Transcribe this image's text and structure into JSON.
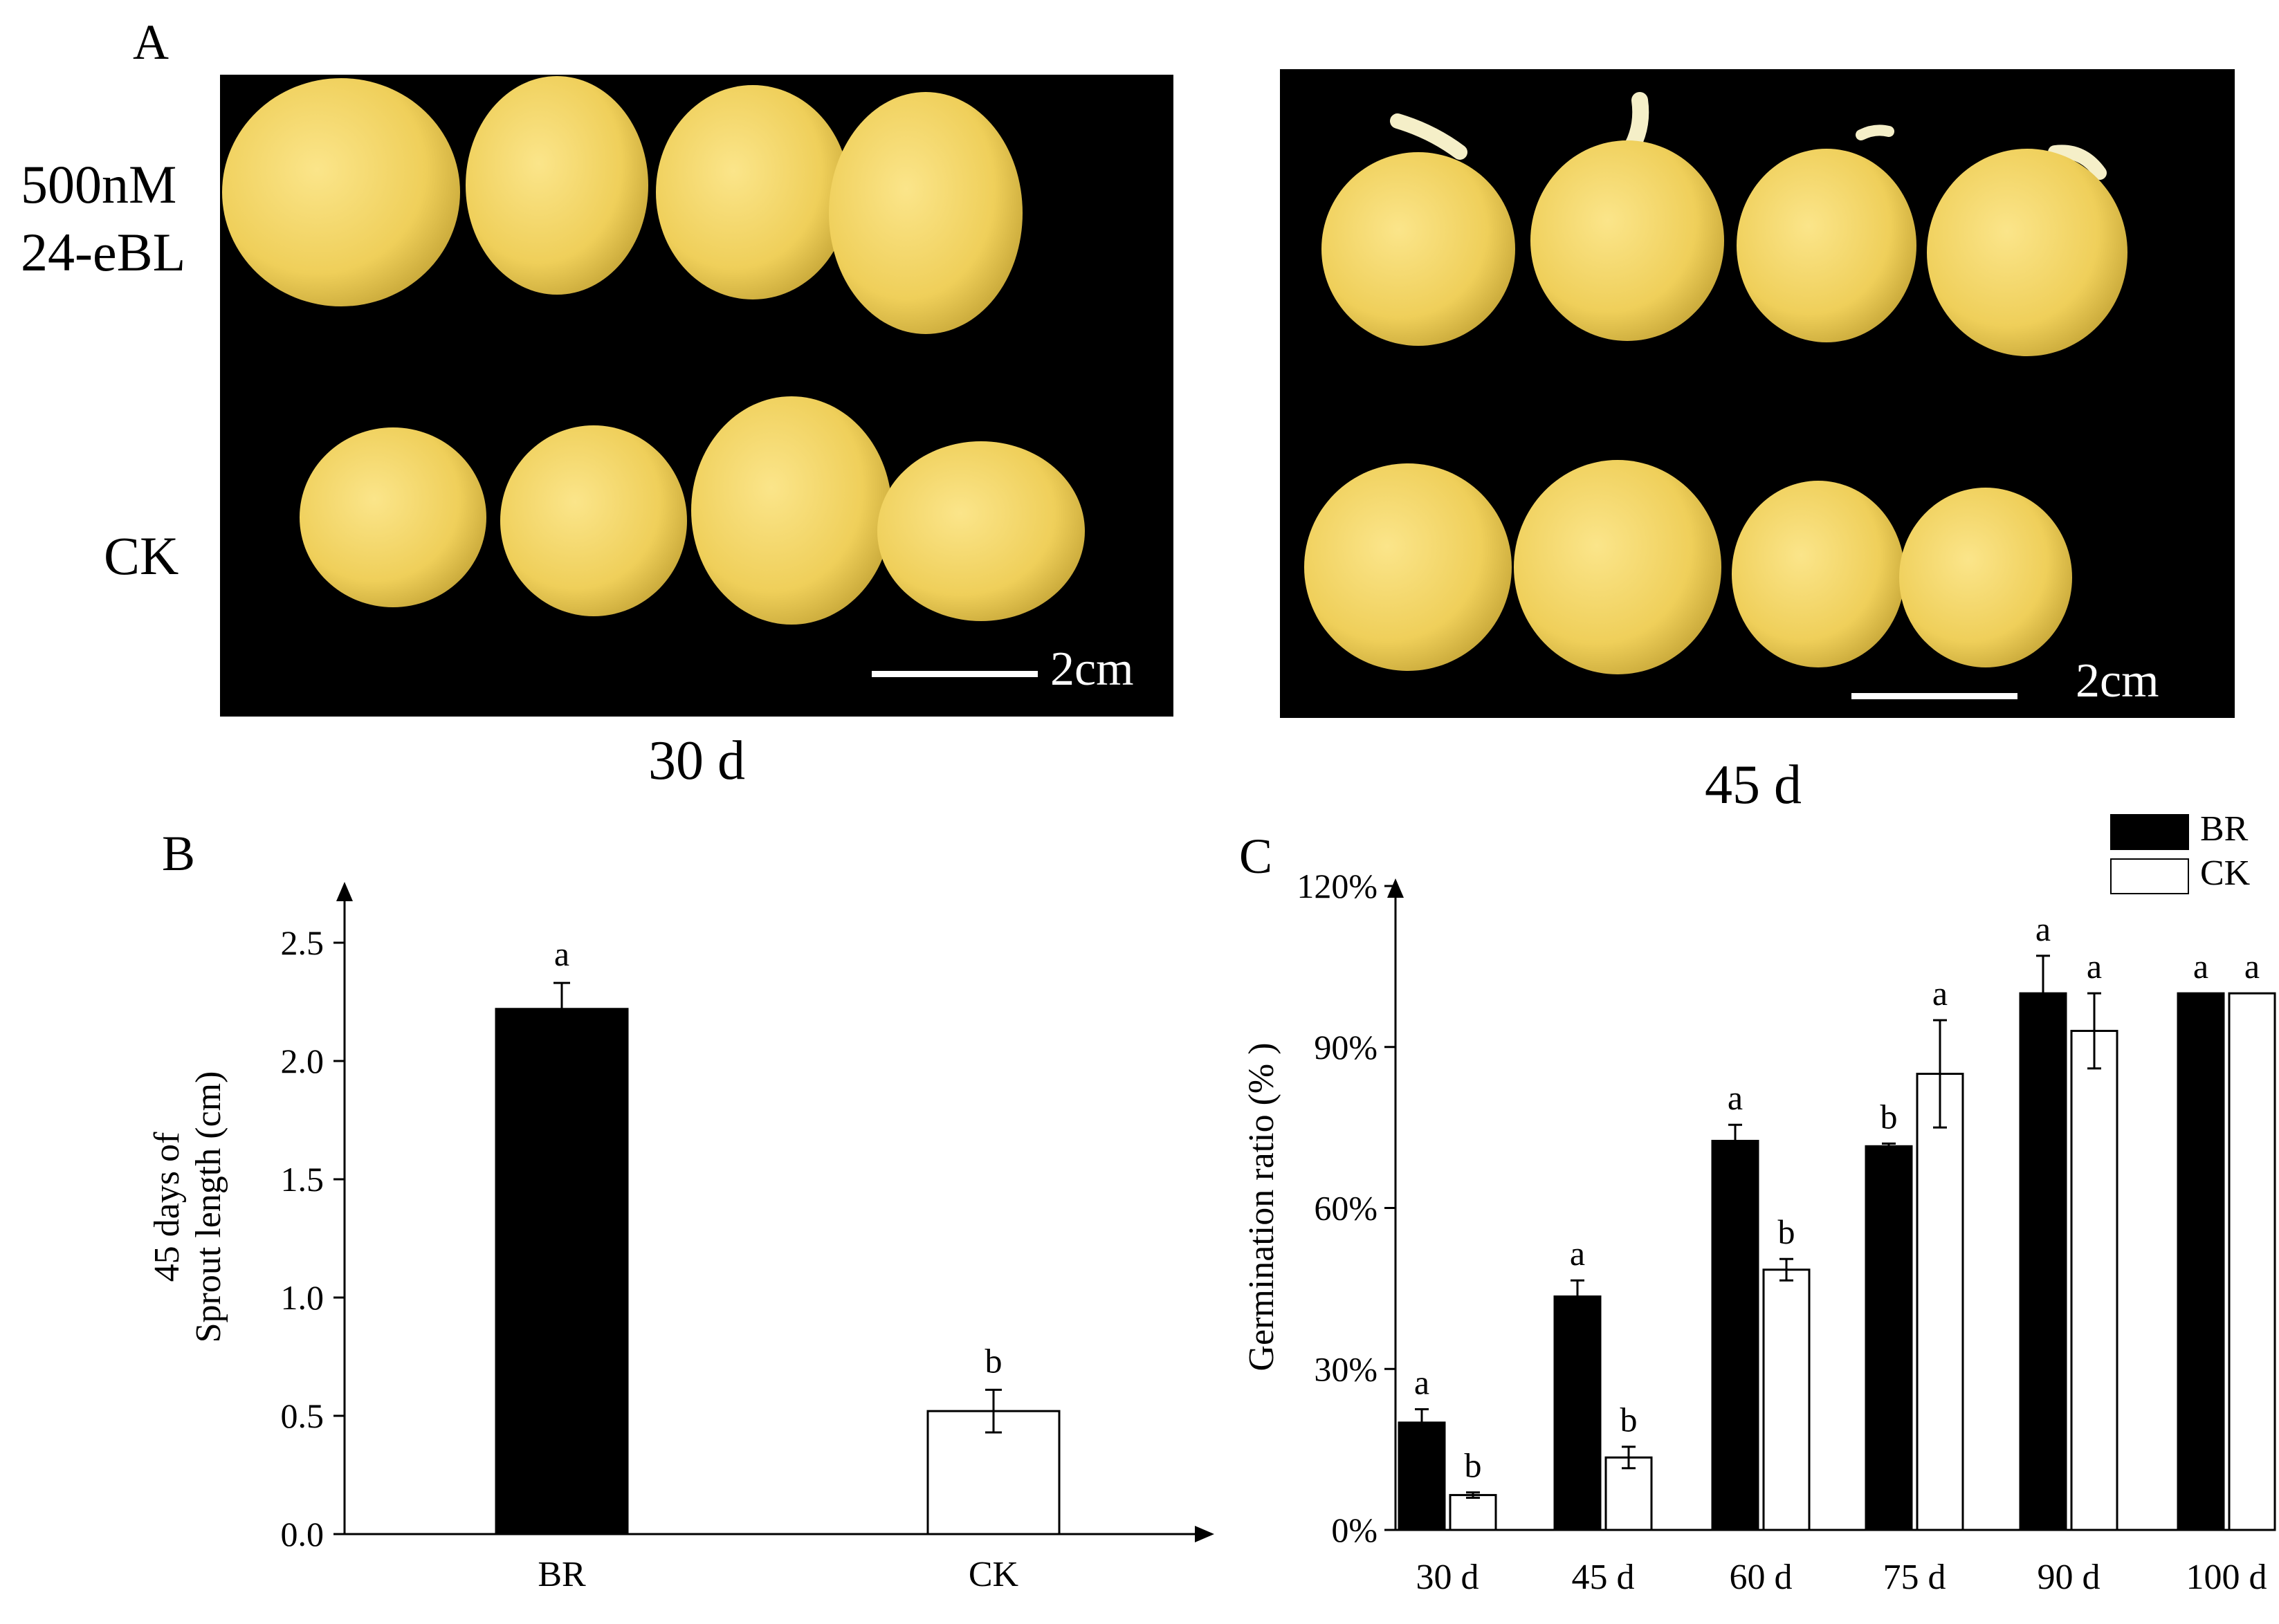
{
  "panel_a": {
    "letter": "A",
    "row_labels": {
      "treatment_line1": "500nM",
      "treatment_line2": "24-eBL",
      "control": "CK"
    },
    "photos": [
      {
        "caption": "30 d",
        "scale": "2cm"
      },
      {
        "caption": "45 d",
        "scale": "2cm"
      }
    ],
    "colors": {
      "background": "#000000",
      "tuber": "#f0d060",
      "tuber_edge": "#c9a93a",
      "sprout": "#f5efc8"
    }
  },
  "chart_data": [
    {
      "panel": "B",
      "type": "bar",
      "categories": [
        "BR",
        "CK"
      ],
      "values": [
        2.22,
        0.52
      ],
      "errors": [
        0.11,
        0.09
      ],
      "significance": [
        "a",
        "b"
      ],
      "colors": [
        "#000000",
        "#ffffff"
      ],
      "ylabel_line1": "45 days of",
      "ylabel_line2": "Sprout length (cm)",
      "ylim": [
        0,
        2.6
      ],
      "yticks": [
        "0.0",
        "0.5",
        "1.0",
        "1.5",
        "2.0",
        "2.5"
      ],
      "ytick_values": [
        0,
        0.5,
        1.0,
        1.5,
        2.0,
        2.5
      ],
      "grid": false
    },
    {
      "panel": "C",
      "type": "bar",
      "categories": [
        "30 d",
        "45 d",
        "60 d",
        "75 d",
        "90 d",
        "100 d"
      ],
      "series": [
        {
          "name": "BR",
          "color": "#000000",
          "values": [
            20,
            43.5,
            72.5,
            71.5,
            100,
            100
          ],
          "errors": [
            2.5,
            3,
            3,
            0.5,
            7,
            0
          ],
          "significance": [
            "a",
            "a",
            "a",
            "b",
            "a",
            "a"
          ]
        },
        {
          "name": "CK",
          "color": "#ffffff",
          "values": [
            6.5,
            13.5,
            48.5,
            85,
            93,
            100
          ],
          "errors": [
            0.5,
            2,
            2,
            10,
            7,
            0
          ],
          "significance": [
            "b",
            "b",
            "b",
            "a",
            "a",
            "a"
          ]
        }
      ],
      "ylabel": "Germination ratio (% )",
      "ylim": [
        0,
        120
      ],
      "yticks": [
        "0%",
        "30%",
        "60%",
        "90%",
        "120%"
      ],
      "ytick_values": [
        0,
        30,
        60,
        90,
        120
      ],
      "legend": {
        "placement": "top-right",
        "labels": [
          "BR",
          "CK"
        ]
      },
      "grid": false
    }
  ]
}
